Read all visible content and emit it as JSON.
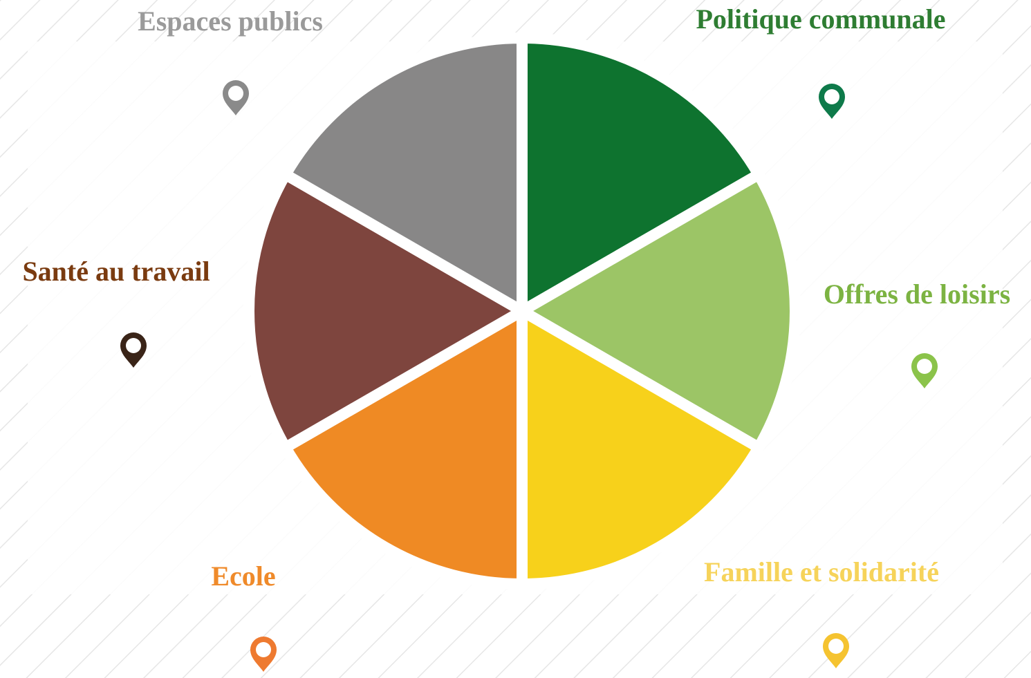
{
  "sectors": [
    {
      "label": "Politique communale",
      "color": "#0e732f",
      "label_color": "#2e7d32",
      "pin_color": "#0e7a4a"
    },
    {
      "label": "Offres de loisirs",
      "color": "#9cc566",
      "label_color": "#7cb342",
      "pin_color": "#8bc34a"
    },
    {
      "label": "Famille et solidarité",
      "color": "#f7d11b",
      "label_color": "#f6d35a",
      "pin_color": "#f5c330"
    },
    {
      "label": "Ecole",
      "color": "#ef8a24",
      "label_color": "#ef8a2a",
      "pin_color": "#ee7a30"
    },
    {
      "label": "Santé au travail",
      "color": "#7e453e",
      "label_color": "#7a3b10",
      "pin_color": "#3a2418"
    },
    {
      "label": "Espaces publics",
      "color": "#888787",
      "label_color": "#9a9a9a",
      "pin_color": "#8a8a8a"
    }
  ]
}
